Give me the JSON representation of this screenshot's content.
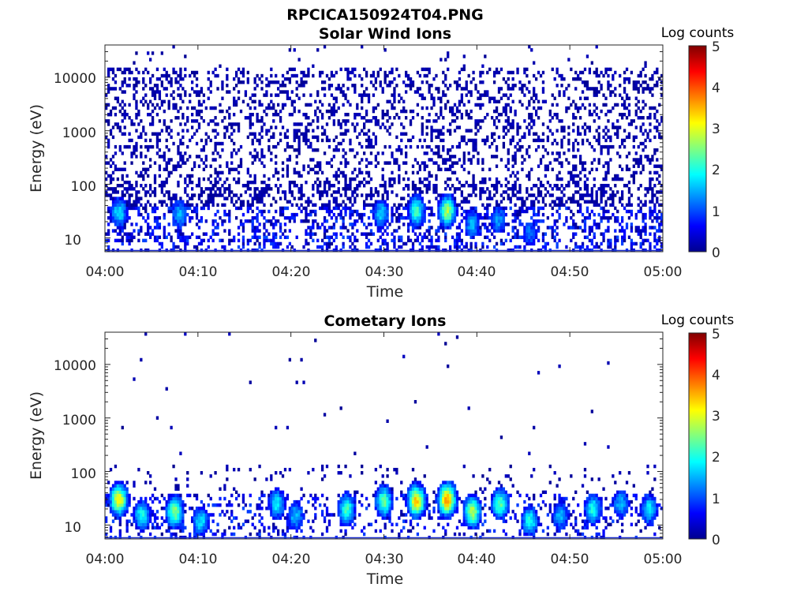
{
  "figure_title": "RPCICA150924T04.PNG",
  "colormap": "jet",
  "chart_data": [
    {
      "type": "heatmap",
      "title": "Solar Wind Ions",
      "xlabel": "Time",
      "ylabel": "Energy (eV)",
      "x_ticks": [
        "04:00",
        "04:10",
        "04:20",
        "04:30",
        "04:40",
        "04:50",
        "05:00"
      ],
      "x_range": [
        "04:00",
        "05:00"
      ],
      "y_ticks": [
        "10",
        "100",
        "1000",
        "10000"
      ],
      "y_scale": "log",
      "y_range": [
        5.5,
        40000
      ],
      "colorbar_title": "Log counts",
      "colorbar_ticks": [
        "0",
        "1",
        "2",
        "3",
        "4",
        "5"
      ],
      "colorbar_range": [
        0,
        5
      ],
      "hotspots": [
        {
          "time_min": 1.5,
          "energy_ev": 30,
          "log_counts": 1.8
        },
        {
          "time_min": 8.0,
          "energy_ev": 28,
          "log_counts": 1.5
        },
        {
          "time_min": 29.7,
          "energy_ev": 28,
          "log_counts": 1.7
        },
        {
          "time_min": 33.5,
          "energy_ev": 32,
          "log_counts": 2.2
        },
        {
          "time_min": 36.8,
          "energy_ev": 32,
          "log_counts": 2.7
        },
        {
          "time_min": 39.5,
          "energy_ev": 18,
          "log_counts": 1.5
        },
        {
          "time_min": 42.3,
          "energy_ev": 22,
          "log_counts": 1.4
        },
        {
          "time_min": 45.7,
          "energy_ev": 12,
          "log_counts": 1.2
        }
      ]
    },
    {
      "type": "heatmap",
      "title": "Cometary Ions",
      "xlabel": "Time",
      "ylabel": "Energy (eV)",
      "x_ticks": [
        "04:00",
        "04:10",
        "04:20",
        "04:30",
        "04:40",
        "04:50",
        "05:00"
      ],
      "x_range": [
        "04:00",
        "05:00"
      ],
      "y_ticks": [
        "10",
        "100",
        "1000",
        "10000"
      ],
      "y_scale": "log",
      "y_range": [
        5.5,
        40000
      ],
      "colorbar_title": "Log counts",
      "colorbar_ticks": [
        "0",
        "1",
        "2",
        "3",
        "4",
        "5"
      ],
      "colorbar_range": [
        0,
        5
      ],
      "hotspots": [
        {
          "time_min": 1.5,
          "energy_ev": 30,
          "log_counts": 3.2
        },
        {
          "time_min": 4.0,
          "energy_ev": 15,
          "log_counts": 2.0
        },
        {
          "time_min": 7.5,
          "energy_ev": 18,
          "log_counts": 2.6
        },
        {
          "time_min": 10.3,
          "energy_ev": 12,
          "log_counts": 1.8
        },
        {
          "time_min": 18.5,
          "energy_ev": 25,
          "log_counts": 1.8
        },
        {
          "time_min": 20.5,
          "energy_ev": 15,
          "log_counts": 1.6
        },
        {
          "time_min": 26.0,
          "energy_ev": 20,
          "log_counts": 2.2
        },
        {
          "time_min": 30.0,
          "energy_ev": 28,
          "log_counts": 2.4
        },
        {
          "time_min": 33.5,
          "energy_ev": 28,
          "log_counts": 3.4
        },
        {
          "time_min": 36.8,
          "energy_ev": 30,
          "log_counts": 3.7
        },
        {
          "time_min": 39.5,
          "energy_ev": 18,
          "log_counts": 2.8
        },
        {
          "time_min": 42.5,
          "energy_ev": 25,
          "log_counts": 2.3
        },
        {
          "time_min": 45.7,
          "energy_ev": 12,
          "log_counts": 2.0
        },
        {
          "time_min": 49.0,
          "energy_ev": 15,
          "log_counts": 1.6
        },
        {
          "time_min": 52.5,
          "energy_ev": 20,
          "log_counts": 2.0
        },
        {
          "time_min": 55.5,
          "energy_ev": 25,
          "log_counts": 1.6
        },
        {
          "time_min": 58.5,
          "energy_ev": 20,
          "log_counts": 1.8
        }
      ]
    }
  ]
}
